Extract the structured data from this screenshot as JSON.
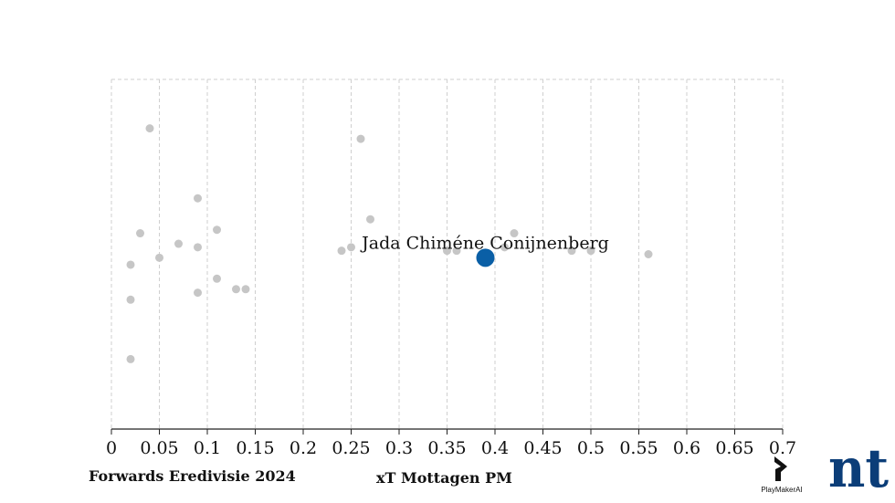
{
  "chart_data": {
    "type": "scatter",
    "xlabel": "xT Mottagen PM",
    "xlim": [
      0,
      0.7
    ],
    "x_ticks": [
      "0",
      "0.05",
      "0.1",
      "0.15",
      "0.2",
      "0.25",
      "0.3",
      "0.35",
      "0.4",
      "0.45",
      "0.5",
      "0.55",
      "0.6",
      "0.65",
      "0.7"
    ],
    "grid": true,
    "y_axis": "none (jitter only)",
    "points": [
      {
        "x": 0.04,
        "y": 0.86
      },
      {
        "x": 0.26,
        "y": 0.83
      },
      {
        "x": 0.09,
        "y": 0.66
      },
      {
        "x": 0.27,
        "y": 0.6
      },
      {
        "x": 0.11,
        "y": 0.57
      },
      {
        "x": 0.03,
        "y": 0.56
      },
      {
        "x": 0.42,
        "y": 0.56
      },
      {
        "x": 0.07,
        "y": 0.53
      },
      {
        "x": 0.09,
        "y": 0.52
      },
      {
        "x": 0.25,
        "y": 0.52
      },
      {
        "x": 0.41,
        "y": 0.52
      },
      {
        "x": 0.24,
        "y": 0.51
      },
      {
        "x": 0.35,
        "y": 0.51
      },
      {
        "x": 0.36,
        "y": 0.51
      },
      {
        "x": 0.48,
        "y": 0.51
      },
      {
        "x": 0.5,
        "y": 0.51
      },
      {
        "x": 0.56,
        "y": 0.5
      },
      {
        "x": 0.05,
        "y": 0.49
      },
      {
        "x": 0.02,
        "y": 0.47
      },
      {
        "x": 0.11,
        "y": 0.43
      },
      {
        "x": 0.13,
        "y": 0.4
      },
      {
        "x": 0.14,
        "y": 0.4
      },
      {
        "x": 0.09,
        "y": 0.39
      },
      {
        "x": 0.02,
        "y": 0.37
      },
      {
        "x": 0.02,
        "y": 0.2
      }
    ],
    "highlight": {
      "name": "Jada Chiméne Conijnenberg",
      "x": 0.39,
      "y": 0.49,
      "color": "#0a5fa6"
    },
    "point_color": "#c6c6c6"
  },
  "captions": {
    "subtitle": "Forwards Eredivisie 2024",
    "axis_title": "xT Mottagen PM"
  },
  "branding": {
    "playmaker": "PlayMakerAI",
    "nt_logo": "nt",
    "nt_color": "#0b3d78"
  }
}
